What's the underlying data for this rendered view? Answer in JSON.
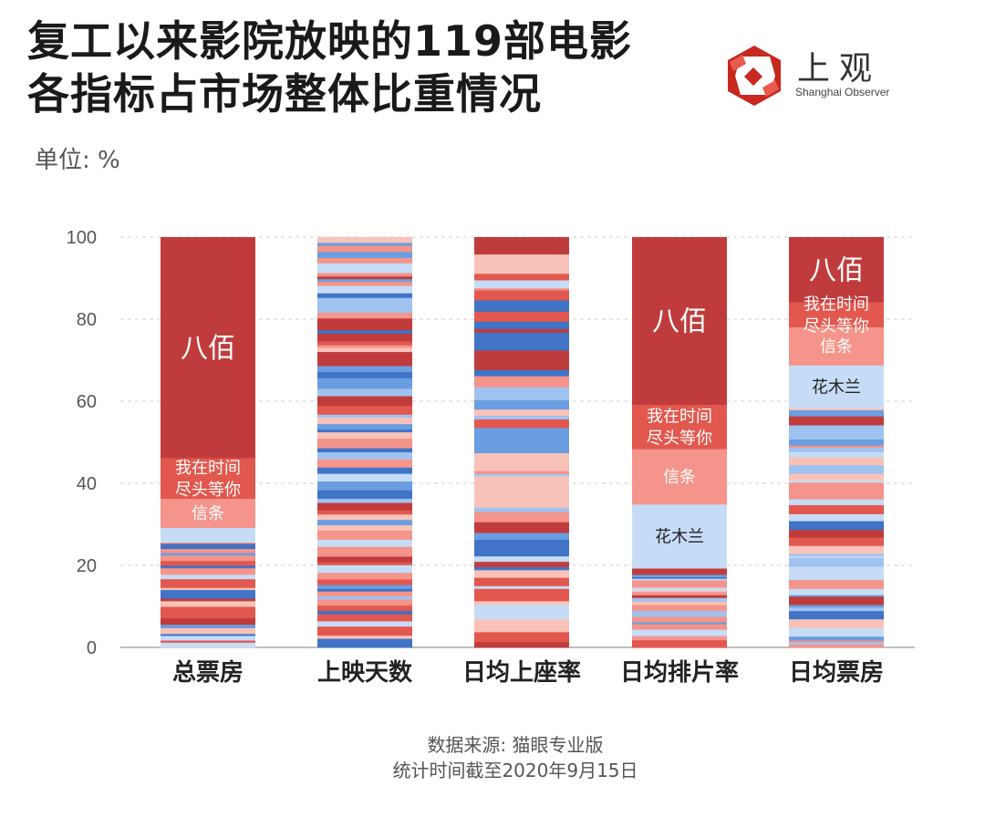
{
  "title": {
    "line1": "复工以来影院放映的119部电影",
    "line2": "各指标占市场整体比重情况"
  },
  "logo": {
    "cn": "上观",
    "en": "Shanghai Observer",
    "colors": {
      "outer": "#c8281e",
      "inner": "#ffffff"
    }
  },
  "unit_label": "单位: %",
  "source": {
    "line1": "数据来源: 猫眼专业版",
    "line2": "统计时间截至2020年9月15日"
  },
  "chart_data": {
    "type": "bar",
    "stacked": true,
    "ylim": [
      0,
      100
    ],
    "yticks": [
      0,
      20,
      40,
      60,
      80,
      100
    ],
    "grid": true,
    "categories": [
      "总票房",
      "上映天数",
      "日均上座率",
      "日均排片率",
      "日均票房"
    ],
    "highlighted_films": [
      {
        "name": "八佰",
        "values": [
          53.8,
          0,
          0,
          40.8,
          15.8
        ],
        "labels": [
          "八佰",
          "",
          "",
          "八佰",
          "八佰"
        ],
        "color": "#c03c3c"
      },
      {
        "name": "我在时间尽头等你",
        "values": [
          9.9,
          0,
          0,
          10.8,
          6.1
        ],
        "labels": [
          "我在时间\n尽头等你",
          "",
          "",
          "我在时间\n尽头等你",
          "我在时间\n尽头等你"
        ],
        "color": "#e2584e"
      },
      {
        "name": "信条",
        "values": [
          7.1,
          0,
          0,
          13.5,
          9.3
        ],
        "labels": [
          "信条",
          "",
          "",
          "信条",
          "信条"
        ],
        "color": "#f4948a"
      },
      {
        "name": "花木兰",
        "values": [
          3.7,
          0,
          0,
          15.6,
          10.4
        ],
        "labels": [
          "",
          "",
          "",
          "花木兰",
          "花木兰"
        ],
        "color": "#c6dcf6"
      }
    ],
    "other_films_share": [
      25.5,
      100,
      100,
      19.3,
      58.4
    ],
    "palette": [
      "#c03c3c",
      "#e2584e",
      "#f4948a",
      "#f9c2b8",
      "#c6dcf6",
      "#9fc2ef",
      "#6b9ee0",
      "#3f74c6"
    ]
  }
}
